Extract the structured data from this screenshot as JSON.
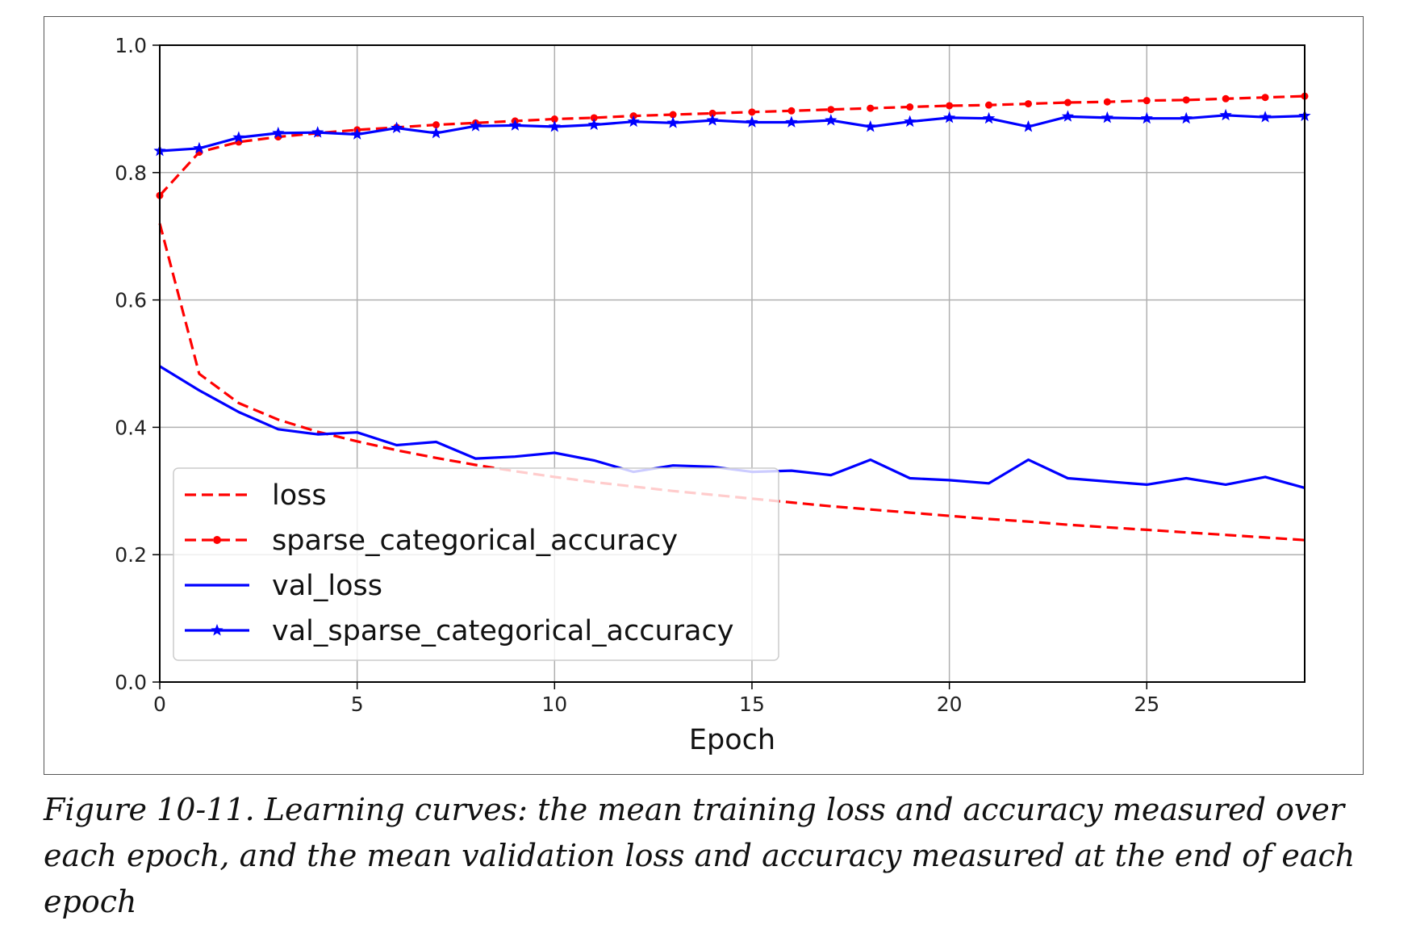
{
  "chart_data": {
    "type": "line",
    "xlabel": "Epoch",
    "ylabel": "",
    "xlim": [
      0,
      29
    ],
    "ylim": [
      0.0,
      1.0
    ],
    "grid": true,
    "legend_position": "lower-left",
    "x_ticks": [
      0,
      5,
      10,
      15,
      20,
      25
    ],
    "y_ticks": [
      "0.0",
      "0.2",
      "0.4",
      "0.6",
      "0.8",
      "1.0"
    ],
    "x": [
      0,
      1,
      2,
      3,
      4,
      5,
      6,
      7,
      8,
      9,
      10,
      11,
      12,
      13,
      14,
      15,
      16,
      17,
      18,
      19,
      20,
      21,
      22,
      23,
      24,
      25,
      26,
      27,
      28,
      29
    ],
    "series": [
      {
        "name": "loss",
        "color": "#ff0000",
        "style": "dashed",
        "marker": "none",
        "values": [
          0.72,
          0.484,
          0.438,
          0.412,
          0.393,
          0.378,
          0.364,
          0.352,
          0.341,
          0.331,
          0.322,
          0.314,
          0.307,
          0.3,
          0.294,
          0.288,
          0.282,
          0.276,
          0.271,
          0.266,
          0.261,
          0.256,
          0.252,
          0.247,
          0.243,
          0.239,
          0.235,
          0.231,
          0.227,
          0.223
        ]
      },
      {
        "name": "sparse_categorical_accuracy",
        "color": "#ff0000",
        "style": "dashed",
        "marker": "dot",
        "values": [
          0.764,
          0.832,
          0.848,
          0.856,
          0.862,
          0.867,
          0.871,
          0.875,
          0.878,
          0.881,
          0.884,
          0.886,
          0.889,
          0.891,
          0.893,
          0.895,
          0.897,
          0.899,
          0.901,
          0.903,
          0.905,
          0.906,
          0.908,
          0.91,
          0.911,
          0.913,
          0.914,
          0.916,
          0.918,
          0.92
        ]
      },
      {
        "name": "val_loss",
        "color": "#0000ff",
        "style": "solid",
        "marker": "none",
        "values": [
          0.496,
          0.458,
          0.424,
          0.397,
          0.389,
          0.392,
          0.372,
          0.377,
          0.351,
          0.354,
          0.36,
          0.348,
          0.33,
          0.34,
          0.338,
          0.33,
          0.332,
          0.325,
          0.349,
          0.32,
          0.317,
          0.312,
          0.349,
          0.32,
          0.315,
          0.31,
          0.32,
          0.31,
          0.322,
          0.305
        ]
      },
      {
        "name": "val_sparse_categorical_accuracy",
        "color": "#0000ff",
        "style": "solid",
        "marker": "star",
        "values": [
          0.834,
          0.838,
          0.855,
          0.862,
          0.863,
          0.86,
          0.87,
          0.862,
          0.873,
          0.874,
          0.872,
          0.875,
          0.88,
          0.878,
          0.882,
          0.879,
          0.879,
          0.882,
          0.872,
          0.88,
          0.886,
          0.885,
          0.872,
          0.888,
          0.886,
          0.885,
          0.885,
          0.89,
          0.887,
          0.889
        ]
      }
    ]
  },
  "caption": "Figure 10-11. Learning curves: the mean training loss and accuracy measured over each epoch, and the mean validation loss and accuracy measured at the end of each epoch"
}
